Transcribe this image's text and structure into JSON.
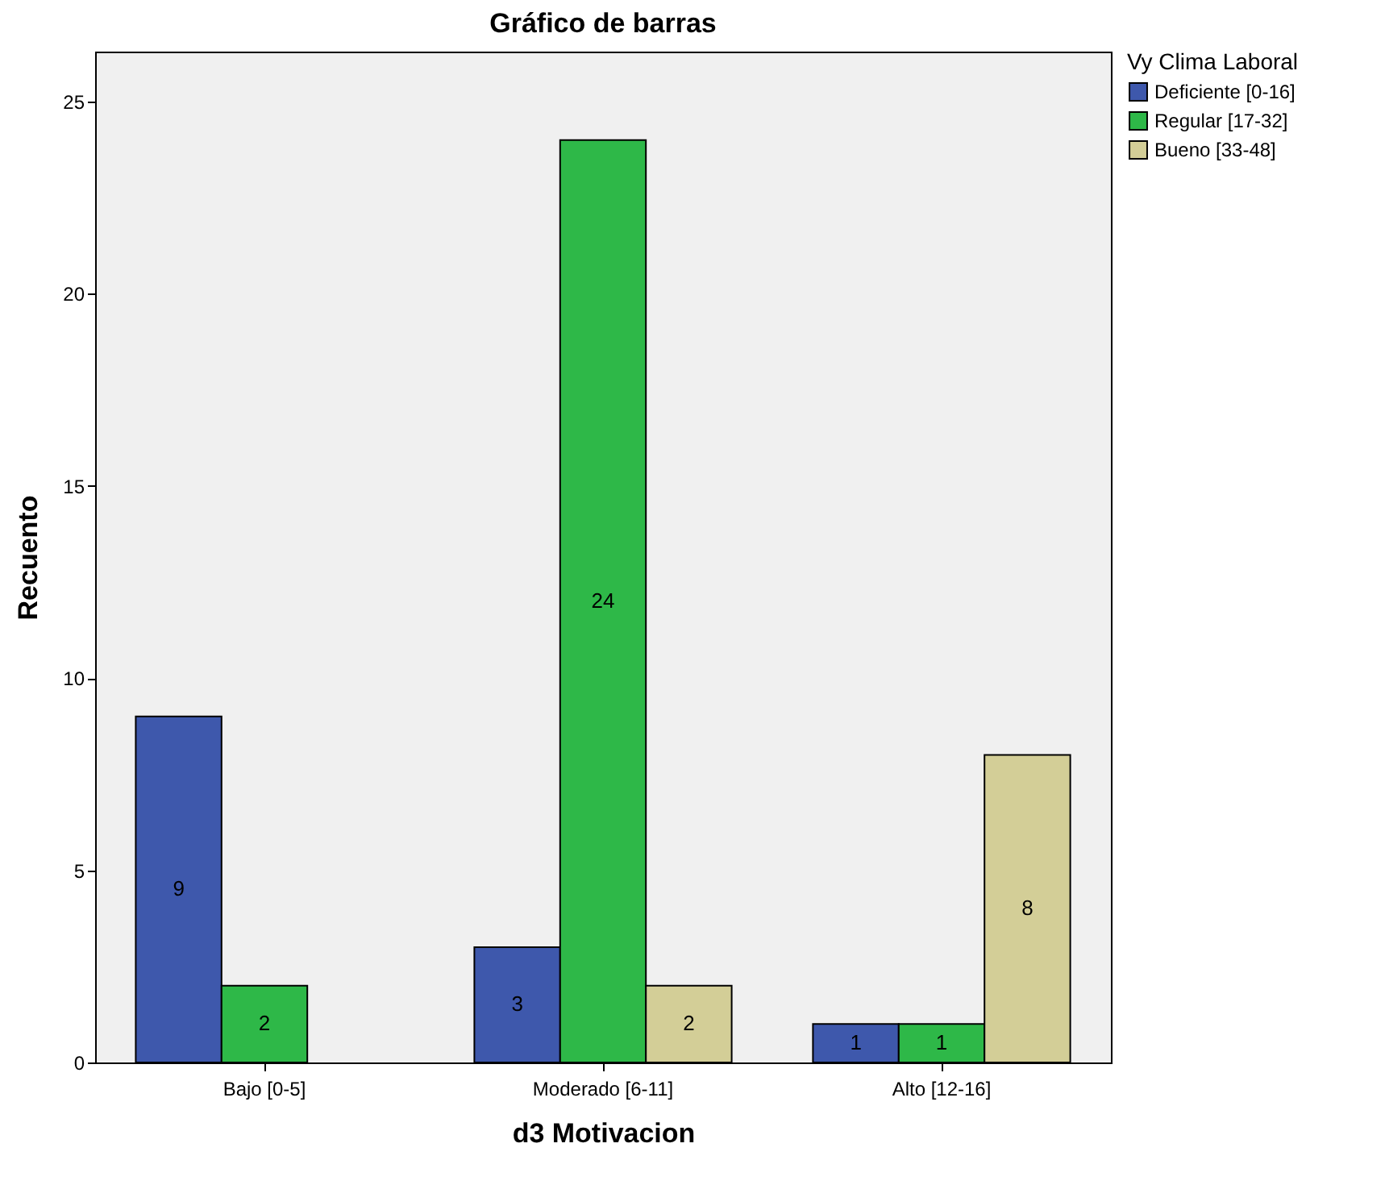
{
  "chart_data": {
    "type": "bar",
    "title": "Gráfico de barras",
    "xlabel": "d3 Motivacion",
    "ylabel": "Recuento",
    "legend_title": "Vy Clima Laboral",
    "categories": [
      "Bajo [0-5]",
      "Moderado [6-11]",
      "Alto [12-16]"
    ],
    "series": [
      {
        "name": "Deficiente [0-16]",
        "color": "#3e58ac",
        "values": [
          9,
          3,
          1
        ]
      },
      {
        "name": "Regular [17-32]",
        "color": "#2eb848",
        "values": [
          2,
          24,
          1
        ]
      },
      {
        "name": "Bueno [33-48]",
        "color": "#d3ce97",
        "values": [
          null,
          2,
          8
        ]
      }
    ],
    "ylim": [
      0,
      26.3
    ],
    "yticks": [
      0,
      5,
      10,
      15,
      20,
      25
    ],
    "grid": false,
    "legend": "top right",
    "data_labels": true
  }
}
